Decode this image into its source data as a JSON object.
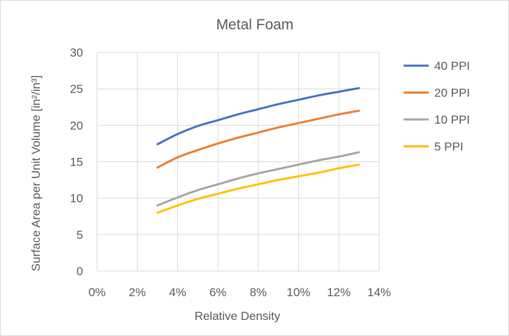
{
  "chart_data": {
    "type": "line",
    "title": "Metal Foam",
    "xlabel": "Relative Density",
    "ylabel": "Surface Area per Unit Volume [in²/in³]",
    "xlim": [
      0,
      0.14
    ],
    "ylim": [
      0,
      30
    ],
    "x_ticks": [
      "0%",
      "2%",
      "4%",
      "6%",
      "8%",
      "10%",
      "12%",
      "14%"
    ],
    "y_ticks": [
      "0",
      "5",
      "10",
      "15",
      "20",
      "25",
      "30"
    ],
    "grid": true,
    "legend_position": "right",
    "x": [
      0.03,
      0.04,
      0.05,
      0.06,
      0.07,
      0.08,
      0.09,
      0.1,
      0.11,
      0.12,
      0.13
    ],
    "series": [
      {
        "name": "40 PPI",
        "color": "#4472c4",
        "values": [
          17.4,
          18.8,
          19.9,
          20.7,
          21.5,
          22.2,
          22.9,
          23.5,
          24.1,
          24.6,
          25.1
        ]
      },
      {
        "name": "20 PPI",
        "color": "#ed7d31",
        "values": [
          14.2,
          15.6,
          16.6,
          17.5,
          18.3,
          19.0,
          19.7,
          20.3,
          20.9,
          21.5,
          22.0
        ]
      },
      {
        "name": "10 PPI",
        "color": "#a5a5a5",
        "values": [
          9.0,
          10.1,
          11.1,
          11.9,
          12.7,
          13.4,
          14.0,
          14.6,
          15.2,
          15.7,
          16.3
        ]
      },
      {
        "name": "5 PPI",
        "color": "#ffc000",
        "values": [
          8.0,
          9.0,
          9.9,
          10.6,
          11.3,
          11.9,
          12.5,
          13.0,
          13.5,
          14.1,
          14.6
        ]
      }
    ]
  }
}
